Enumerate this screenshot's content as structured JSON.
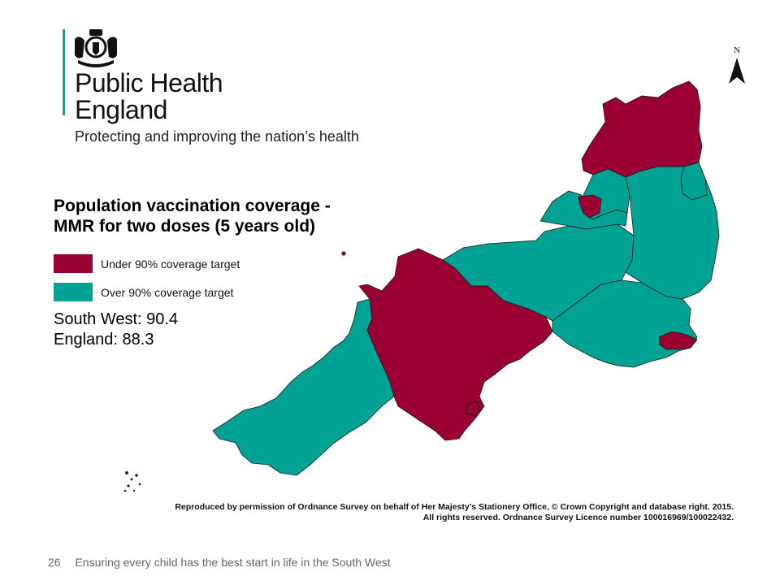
{
  "organisation": {
    "name_line1": "Public Health",
    "name_line2": "England",
    "tagline": "Protecting and improving the nation’s health"
  },
  "title_line1": "Population vaccination coverage -",
  "title_line2": "MMR for two doses (5 years old)",
  "legend": [
    {
      "label": "Under 90% coverage target",
      "color": "#9b0033"
    },
    {
      "label": "Over 90% coverage target",
      "color": "#00a294"
    }
  ],
  "stats": {
    "south_west": "South West: 90.4",
    "england": "England: 88.3"
  },
  "compass_label": "N",
  "credit_line1": "Reproduced by permission of Ordnance Survey on behalf of Her Majesty’s Stationery Office, © Crown Copyright and database right. 2015.",
  "credit_line2": "All rights reserved. Ordnance Survey Licence number 100016969/100022432.",
  "footer": {
    "page_number": "26",
    "text": "Ensuring every child has the best start in life in the South West"
  },
  "colors": {
    "under_target": "#9b0033",
    "over_target": "#00a294",
    "boundary": "#1a1a1a",
    "accent_bar": "#00a8a8"
  }
}
